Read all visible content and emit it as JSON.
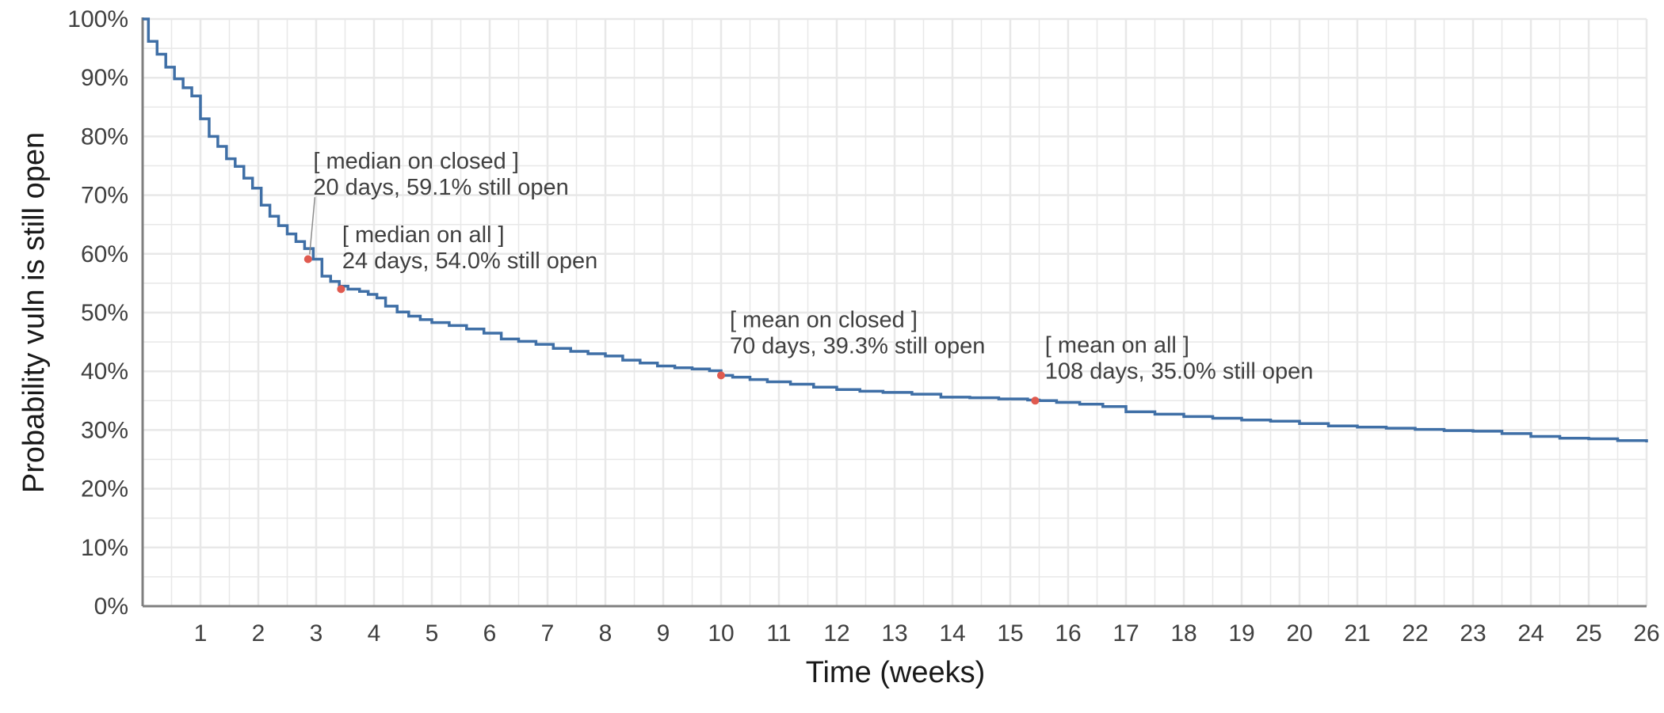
{
  "chart_data": {
    "type": "line",
    "title": "",
    "xlabel": "Time (weeks)",
    "ylabel": "Probability vuln is still open",
    "xlim": [
      0,
      26
    ],
    "ylim": [
      0,
      100
    ],
    "x_ticks": [
      1,
      2,
      3,
      4,
      5,
      6,
      7,
      8,
      9,
      10,
      11,
      12,
      13,
      14,
      15,
      16,
      17,
      18,
      19,
      20,
      21,
      22,
      23,
      24,
      25,
      26
    ],
    "y_ticks": [
      "0%",
      "10%",
      "20%",
      "30%",
      "40%",
      "50%",
      "60%",
      "70%",
      "80%",
      "90%",
      "100%"
    ],
    "grid": true,
    "step": true,
    "colors": {
      "series": "#3f6fa6",
      "marker": "#e05a4f",
      "grid": "#e8e8e8",
      "axis": "#7f7f7f",
      "text": "#404040"
    },
    "series": [
      {
        "x": [
          0,
          0.1,
          0.25,
          0.4,
          0.55,
          0.7,
          0.85,
          1.0,
          1.15,
          1.3,
          1.45,
          1.6,
          1.75,
          1.9,
          2.05,
          2.2,
          2.35,
          2.5,
          2.65,
          2.8,
          2.95,
          3.1,
          3.25,
          3.4,
          3.55,
          3.75,
          3.9,
          4.05,
          4.2,
          4.4,
          4.6,
          4.8,
          5.0,
          5.3,
          5.6,
          5.9,
          6.2,
          6.5,
          6.8,
          7.1,
          7.4,
          7.7,
          8.0,
          8.3,
          8.6,
          8.9,
          9.2,
          9.5,
          9.8,
          10.0,
          10.2,
          10.5,
          10.8,
          11.2,
          11.6,
          12.0,
          12.4,
          12.8,
          13.3,
          13.8,
          14.3,
          14.8,
          15.3,
          15.5,
          15.8,
          16.2,
          16.6,
          17.0,
          17.5,
          18.0,
          18.5,
          19.0,
          19.5,
          20.0,
          20.5,
          21.0,
          21.5,
          22.0,
          22.5,
          23.0,
          23.5,
          24.0,
          24.5,
          25.0,
          25.5,
          26.0
        ],
        "y": [
          100,
          96.2,
          94.0,
          91.8,
          89.8,
          88.3,
          86.9,
          83.0,
          80.0,
          78.3,
          76.2,
          74.9,
          72.9,
          71.2,
          68.3,
          66.4,
          64.8,
          63.4,
          62.1,
          60.9,
          59.1,
          56.2,
          55.3,
          54.5,
          54.0,
          53.6,
          53.1,
          52.5,
          51.1,
          50.1,
          49.4,
          48.8,
          48.3,
          47.8,
          47.2,
          46.5,
          45.5,
          45.1,
          44.6,
          43.9,
          43.4,
          43.0,
          42.6,
          41.9,
          41.4,
          40.9,
          40.6,
          40.4,
          40.1,
          39.3,
          39.0,
          38.6,
          38.2,
          37.8,
          37.3,
          36.9,
          36.6,
          36.4,
          36.1,
          35.6,
          35.5,
          35.3,
          35.1,
          35.0,
          34.7,
          34.4,
          34.0,
          33.1,
          32.7,
          32.3,
          32.0,
          31.7,
          31.5,
          31.1,
          30.7,
          30.5,
          30.3,
          30.1,
          29.9,
          29.8,
          29.4,
          28.9,
          28.6,
          28.5,
          28.2,
          27.9
        ]
      }
    ],
    "annotations": [
      {
        "x": 2.86,
        "y": 59.1,
        "line1": "[ median on closed ]",
        "line2": "20 days, 59.1% still open",
        "label_x": 2.95,
        "label_y": 74.5,
        "leader": true
      },
      {
        "x": 3.43,
        "y": 54.0,
        "line1": "[ median on all ]",
        "line2": "24 days, 54.0% still open",
        "label_x": 3.45,
        "label_y": 62.0,
        "leader": false
      },
      {
        "x": 10.0,
        "y": 39.3,
        "line1": "[ mean on closed ]",
        "line2": "70 days, 39.3% still open",
        "label_x": 10.15,
        "label_y": 47.5,
        "leader": false
      },
      {
        "x": 15.43,
        "y": 35.0,
        "line1": "[ mean on all ]",
        "line2": "108 days, 35.0% still open",
        "label_x": 15.6,
        "label_y": 43.2,
        "leader": false
      }
    ]
  }
}
